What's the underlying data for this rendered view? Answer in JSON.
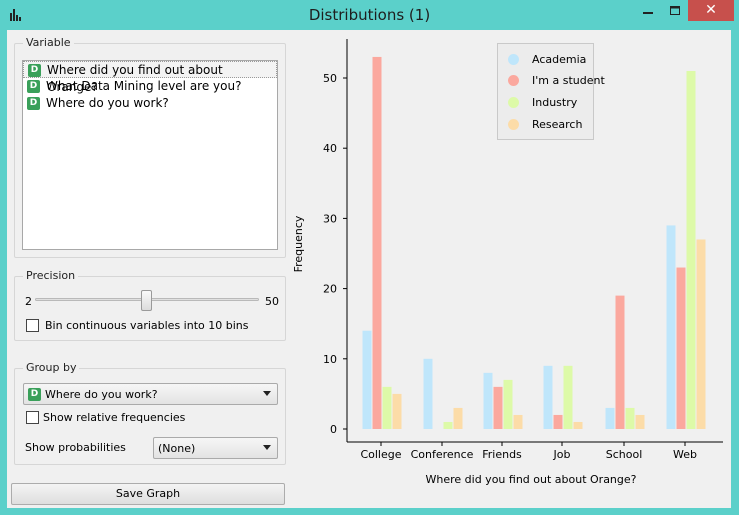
{
  "window": {
    "title": "Distributions (1)",
    "minimize_label": "—",
    "maximize_label": "☐",
    "close_label": "✕"
  },
  "variable": {
    "group_title": "Variable",
    "items": [
      {
        "badge": "D",
        "label": "Where did you find out about Orange?",
        "selected": true
      },
      {
        "badge": "D",
        "label": "What Data Mining level are you?",
        "selected": false
      },
      {
        "badge": "D",
        "label": "Where do you work?",
        "selected": false
      }
    ]
  },
  "precision": {
    "group_title": "Precision",
    "min_label": "2",
    "max_label": "50",
    "slider_value": 0.5,
    "bin_checkbox_label": "Bin continuous variables into 10 bins",
    "bin_checked": false
  },
  "group_by": {
    "group_title": "Group by",
    "badge": "D",
    "selected": "Where do you work?",
    "relative_label": "Show relative frequencies",
    "relative_checked": false,
    "probabilities_label": "Show probabilities",
    "probabilities_value": "(None)"
  },
  "save_graph_label": "Save Graph",
  "colors": {
    "Academia": "#bfe6fb",
    "I'm a student": "#fba89e",
    "Industry": "#ddfaa8",
    "Research": "#fcdca8"
  },
  "chart_data": {
    "type": "bar",
    "xlabel": "Where did you find out about Orange?",
    "ylabel": "Frequency",
    "categories": [
      "College",
      "Conference",
      "Friends",
      "Job",
      "School",
      "Web"
    ],
    "yticks": [
      0,
      10,
      20,
      30,
      40,
      50
    ],
    "ylim": [
      0,
      55
    ],
    "legend_position": "top",
    "series": [
      {
        "name": "Academia",
        "values": [
          14,
          10,
          8,
          9,
          3,
          29
        ]
      },
      {
        "name": "I'm a student",
        "values": [
          53,
          0,
          6,
          2,
          19,
          23
        ]
      },
      {
        "name": "Industry",
        "values": [
          6,
          1,
          7,
          9,
          3,
          51
        ]
      },
      {
        "name": "Research",
        "values": [
          5,
          3,
          2,
          1,
          2,
          27
        ]
      }
    ]
  }
}
